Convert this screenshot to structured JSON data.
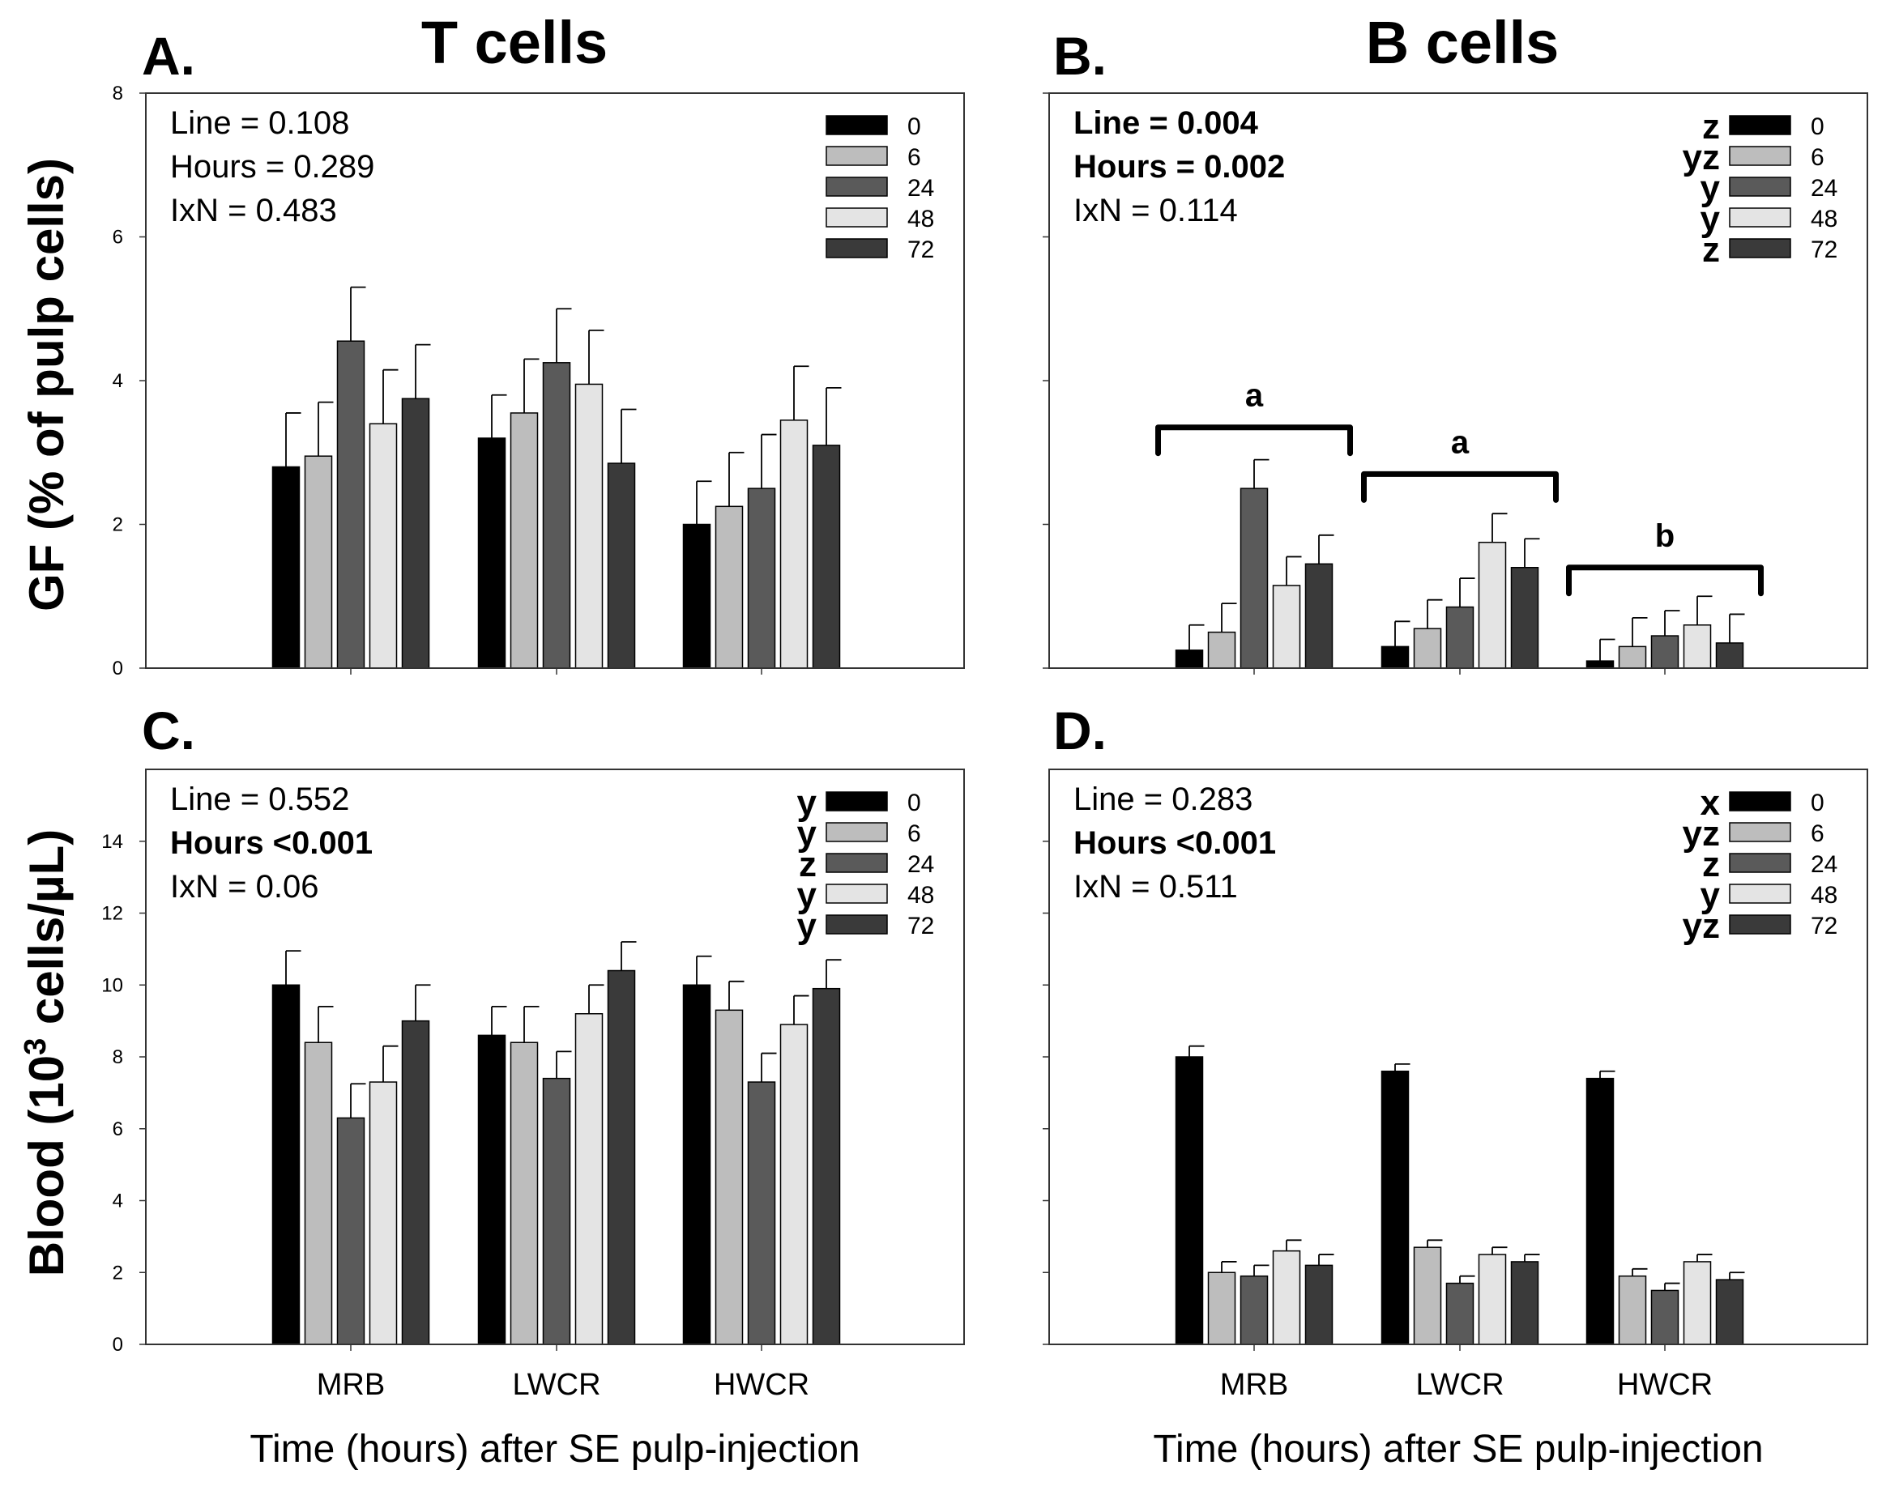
{
  "colors": {
    "0": "#000000",
    "6": "#bdbdbd",
    "24": "#5a5a5a",
    "48": "#e4e4e4",
    "72": "#3a3a3a"
  },
  "ylabels": {
    "top": "GF (% of pulp cells)",
    "bottom_prefix": "Blood (10",
    "bottom_sup": "3",
    "bottom_suffix": " cells/µL)"
  },
  "xlabel": "Time (hours) after SE pulp-injection",
  "chart_data": [
    {
      "id": "A",
      "type": "bar",
      "panel_label": "A.",
      "title": "T cells",
      "categories": [
        "MRB",
        "LWCR",
        "HWCR"
      ],
      "show_category_labels": false,
      "ylim": [
        0,
        8
      ],
      "yticks": [
        0,
        2,
        4,
        6,
        8
      ],
      "xlabel": "",
      "stats": [
        {
          "text": "Line = 0.108",
          "bold": false
        },
        {
          "text": "Hours = 0.289",
          "bold": false
        },
        {
          "text": "IxN = 0.483",
          "bold": false
        }
      ],
      "legend": [
        {
          "label": "0",
          "letter": ""
        },
        {
          "label": "6",
          "letter": ""
        },
        {
          "label": "24",
          "letter": ""
        },
        {
          "label": "48",
          "letter": ""
        },
        {
          "label": "72",
          "letter": ""
        }
      ],
      "series": [
        {
          "name": "0",
          "values": [
            2.8,
            3.2,
            2.0
          ],
          "errors": [
            0.75,
            0.6,
            0.6
          ]
        },
        {
          "name": "6",
          "values": [
            2.95,
            3.55,
            2.25
          ],
          "errors": [
            0.75,
            0.75,
            0.75
          ]
        },
        {
          "name": "24",
          "values": [
            4.55,
            4.25,
            2.5
          ],
          "errors": [
            0.75,
            0.75,
            0.75
          ]
        },
        {
          "name": "48",
          "values": [
            3.4,
            3.95,
            3.45
          ],
          "errors": [
            0.75,
            0.75,
            0.75
          ]
        },
        {
          "name": "72",
          "values": [
            3.75,
            2.85,
            3.1
          ],
          "errors": [
            0.75,
            0.75,
            0.8
          ]
        }
      ],
      "brackets": []
    },
    {
      "id": "B",
      "type": "bar",
      "panel_label": "B.",
      "title": "B cells",
      "categories": [
        "MRB",
        "LWCR",
        "HWCR"
      ],
      "show_category_labels": false,
      "ylim": [
        0,
        8
      ],
      "yticks": [],
      "xlabel": "",
      "stats": [
        {
          "text": "Line = 0.004",
          "bold": true
        },
        {
          "text": "Hours = 0.002",
          "bold": true
        },
        {
          "text": "IxN = 0.114",
          "bold": false
        }
      ],
      "legend": [
        {
          "label": "0",
          "letter": "z"
        },
        {
          "label": "6",
          "letter": "yz"
        },
        {
          "label": "24",
          "letter": "y"
        },
        {
          "label": "48",
          "letter": "y"
        },
        {
          "label": "72",
          "letter": "z"
        }
      ],
      "series": [
        {
          "name": "0",
          "values": [
            0.25,
            0.3,
            0.1
          ],
          "errors": [
            0.35,
            0.35,
            0.3
          ]
        },
        {
          "name": "6",
          "values": [
            0.5,
            0.55,
            0.3
          ],
          "errors": [
            0.4,
            0.4,
            0.4
          ]
        },
        {
          "name": "24",
          "values": [
            2.5,
            0.85,
            0.45
          ],
          "errors": [
            0.4,
            0.4,
            0.35
          ]
        },
        {
          "name": "48",
          "values": [
            1.15,
            1.75,
            0.6
          ],
          "errors": [
            0.4,
            0.4,
            0.4
          ]
        },
        {
          "name": "72",
          "values": [
            1.45,
            1.4,
            0.35
          ],
          "errors": [
            0.4,
            0.4,
            0.4
          ]
        }
      ],
      "brackets": [
        {
          "category": 0,
          "y": 3.35,
          "letter": "a"
        },
        {
          "category": 1,
          "y": 2.7,
          "letter": "a"
        },
        {
          "category": 2,
          "y": 1.4,
          "letter": "b"
        }
      ]
    },
    {
      "id": "C",
      "type": "bar",
      "panel_label": "C.",
      "title": "",
      "categories": [
        "MRB",
        "LWCR",
        "HWCR"
      ],
      "show_category_labels": true,
      "ylim": [
        0,
        16
      ],
      "yticks": [
        0,
        2,
        4,
        6,
        8,
        10,
        12,
        14
      ],
      "xlabel": "Time (hours) after SE pulp-injection",
      "stats": [
        {
          "text": "Line = 0.552",
          "bold": false
        },
        {
          "text": "Hours <0.001",
          "bold": true
        },
        {
          "text": "IxN = 0.06",
          "bold": false
        }
      ],
      "legend": [
        {
          "label": "0",
          "letter": "y"
        },
        {
          "label": "6",
          "letter": "y"
        },
        {
          "label": "24",
          "letter": "z"
        },
        {
          "label": "48",
          "letter": "y"
        },
        {
          "label": "72",
          "letter": "y"
        }
      ],
      "series": [
        {
          "name": "0",
          "values": [
            10.0,
            8.6,
            10.0
          ],
          "errors": [
            0.95,
            0.8,
            0.8
          ]
        },
        {
          "name": "6",
          "values": [
            8.4,
            8.4,
            9.3
          ],
          "errors": [
            1.0,
            1.0,
            0.8
          ]
        },
        {
          "name": "24",
          "values": [
            6.3,
            7.4,
            7.3
          ],
          "errors": [
            0.95,
            0.75,
            0.8
          ]
        },
        {
          "name": "48",
          "values": [
            7.3,
            9.2,
            8.9
          ],
          "errors": [
            1.0,
            0.8,
            0.8
          ]
        },
        {
          "name": "72",
          "values": [
            9.0,
            10.4,
            9.9
          ],
          "errors": [
            1.0,
            0.8,
            0.8
          ]
        }
      ],
      "brackets": []
    },
    {
      "id": "D",
      "type": "bar",
      "panel_label": "D.",
      "title": "",
      "categories": [
        "MRB",
        "LWCR",
        "HWCR"
      ],
      "show_category_labels": true,
      "ylim": [
        0,
        16
      ],
      "yticks": [],
      "xlabel": "Time (hours) after SE pulp-injection",
      "stats": [
        {
          "text": "Line = 0.283",
          "bold": false
        },
        {
          "text": "Hours <0.001",
          "bold": true
        },
        {
          "text": "IxN = 0.511",
          "bold": false
        }
      ],
      "legend": [
        {
          "label": "0",
          "letter": "x"
        },
        {
          "label": "6",
          "letter": "yz"
        },
        {
          "label": "24",
          "letter": "z"
        },
        {
          "label": "48",
          "letter": "y"
        },
        {
          "label": "72",
          "letter": "yz"
        }
      ],
      "series": [
        {
          "name": "0",
          "values": [
            8.0,
            7.6,
            7.4
          ],
          "errors": [
            0.3,
            0.2,
            0.2
          ]
        },
        {
          "name": "6",
          "values": [
            2.0,
            2.7,
            1.9
          ],
          "errors": [
            0.3,
            0.2,
            0.2
          ]
        },
        {
          "name": "24",
          "values": [
            1.9,
            1.7,
            1.5
          ],
          "errors": [
            0.3,
            0.2,
            0.2
          ]
        },
        {
          "name": "48",
          "values": [
            2.6,
            2.5,
            2.3
          ],
          "errors": [
            0.3,
            0.2,
            0.2
          ]
        },
        {
          "name": "72",
          "values": [
            2.2,
            2.3,
            1.8
          ],
          "errors": [
            0.3,
            0.2,
            0.2
          ]
        }
      ],
      "brackets": []
    }
  ]
}
